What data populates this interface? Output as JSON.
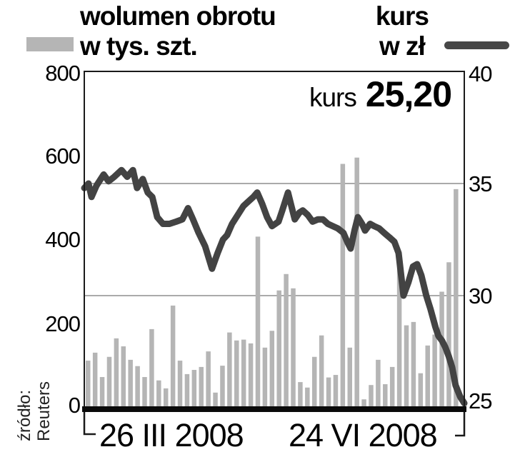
{
  "legend": {
    "volume_line1": "wolumen obrotu",
    "volume_line2": "w tys. szt.",
    "price_line1": "kurs",
    "price_line2": "w zł"
  },
  "annotation": {
    "label": "kurs",
    "value": "25,20"
  },
  "source": {
    "line1": "źródło:",
    "line2": "Reuters"
  },
  "colors": {
    "bar": "#b5b5b5",
    "line": "#434343",
    "grid": "#aaaaaa",
    "axis": "#1a1a1a",
    "baseline": "#0a0a0a",
    "text": "#000000"
  },
  "chart_data": {
    "type": "bar+line",
    "title": "kurs 25,20",
    "x_axis": {
      "labels": [
        "26 III 2008",
        "24 VI 2008"
      ]
    },
    "left_axis": {
      "name": "wolumen obrotu w tys. szt.",
      "ticks": [
        "800",
        "600",
        "400",
        "200",
        "0"
      ],
      "range": [
        0,
        800
      ]
    },
    "right_axis": {
      "name": "kurs w zł",
      "ticks": [
        "40",
        "35",
        "30",
        "25"
      ],
      "range": [
        25,
        40
      ],
      "gridlines_at": [
        35,
        30
      ]
    },
    "last_price": "25,20",
    "series": [
      {
        "name": "wolumen obrotu w tys. szt.",
        "type": "bar",
        "values": [
          112,
          131,
          73,
          121,
          165,
          146,
          114,
          99,
          73,
          187,
          65,
          46,
          243,
          112,
          80,
          90,
          97,
          134,
          36,
          100,
          179,
          160,
          162,
          153,
          407,
          143,
          183,
          279,
          318,
          284,
          61,
          48,
          121,
          172,
          72,
          78,
          580,
          143,
          595,
          20,
          54,
          114,
          56,
          97,
          354,
          196,
          204,
          82,
          148,
          174,
          276,
          346,
          520
        ]
      },
      {
        "name": "kurs w zł",
        "type": "line",
        "points": [
          [
            0.0,
            34.8
          ],
          [
            0.011,
            35.0
          ],
          [
            0.019,
            34.4
          ],
          [
            0.032,
            34.9
          ],
          [
            0.051,
            35.4
          ],
          [
            0.064,
            35.1
          ],
          [
            0.079,
            35.3
          ],
          [
            0.098,
            35.6
          ],
          [
            0.113,
            35.3
          ],
          [
            0.128,
            35.6
          ],
          [
            0.139,
            34.8
          ],
          [
            0.154,
            35.2
          ],
          [
            0.167,
            34.6
          ],
          [
            0.179,
            34.4
          ],
          [
            0.192,
            33.5
          ],
          [
            0.207,
            33.2
          ],
          [
            0.224,
            33.2
          ],
          [
            0.242,
            33.3
          ],
          [
            0.258,
            33.4
          ],
          [
            0.273,
            33.9
          ],
          [
            0.286,
            33.4
          ],
          [
            0.301,
            32.8
          ],
          [
            0.318,
            32.2
          ],
          [
            0.336,
            31.2
          ],
          [
            0.351,
            31.9
          ],
          [
            0.365,
            32.5
          ],
          [
            0.376,
            32.7
          ],
          [
            0.389,
            33.2
          ],
          [
            0.404,
            33.6
          ],
          [
            0.419,
            34.0
          ],
          [
            0.432,
            34.2
          ],
          [
            0.445,
            34.4
          ],
          [
            0.455,
            34.6
          ],
          [
            0.468,
            34.1
          ],
          [
            0.481,
            33.5
          ],
          [
            0.494,
            33.1
          ],
          [
            0.511,
            33.3
          ],
          [
            0.521,
            33.8
          ],
          [
            0.536,
            34.6
          ],
          [
            0.545,
            34.0
          ],
          [
            0.554,
            33.4
          ],
          [
            0.566,
            33.7
          ],
          [
            0.575,
            33.8
          ],
          [
            0.588,
            33.6
          ],
          [
            0.601,
            33.3
          ],
          [
            0.615,
            33.4
          ],
          [
            0.628,
            33.4
          ],
          [
            0.641,
            33.2
          ],
          [
            0.654,
            33.1
          ],
          [
            0.667,
            33.0
          ],
          [
            0.682,
            32.8
          ],
          [
            0.692,
            32.4
          ],
          [
            0.701,
            32.1
          ],
          [
            0.711,
            32.9
          ],
          [
            0.72,
            33.5
          ],
          [
            0.731,
            33.2
          ],
          [
            0.739,
            32.9
          ],
          [
            0.752,
            33.2
          ],
          [
            0.763,
            33.1
          ],
          [
            0.776,
            33.0
          ],
          [
            0.789,
            32.8
          ],
          [
            0.803,
            32.6
          ],
          [
            0.816,
            32.4
          ],
          [
            0.827,
            31.9
          ],
          [
            0.84,
            30.0
          ],
          [
            0.853,
            30.6
          ],
          [
            0.865,
            31.3
          ],
          [
            0.876,
            31.4
          ],
          [
            0.887,
            30.9
          ],
          [
            0.9,
            30.0
          ],
          [
            0.911,
            29.4
          ],
          [
            0.924,
            28.6
          ],
          [
            0.932,
            28.2
          ],
          [
            0.941,
            28.0
          ],
          [
            0.95,
            27.7
          ],
          [
            0.959,
            27.3
          ],
          [
            0.968,
            26.8
          ],
          [
            0.977,
            26.0
          ],
          [
            0.989,
            25.5
          ],
          [
            1.0,
            25.2
          ]
        ]
      }
    ]
  }
}
